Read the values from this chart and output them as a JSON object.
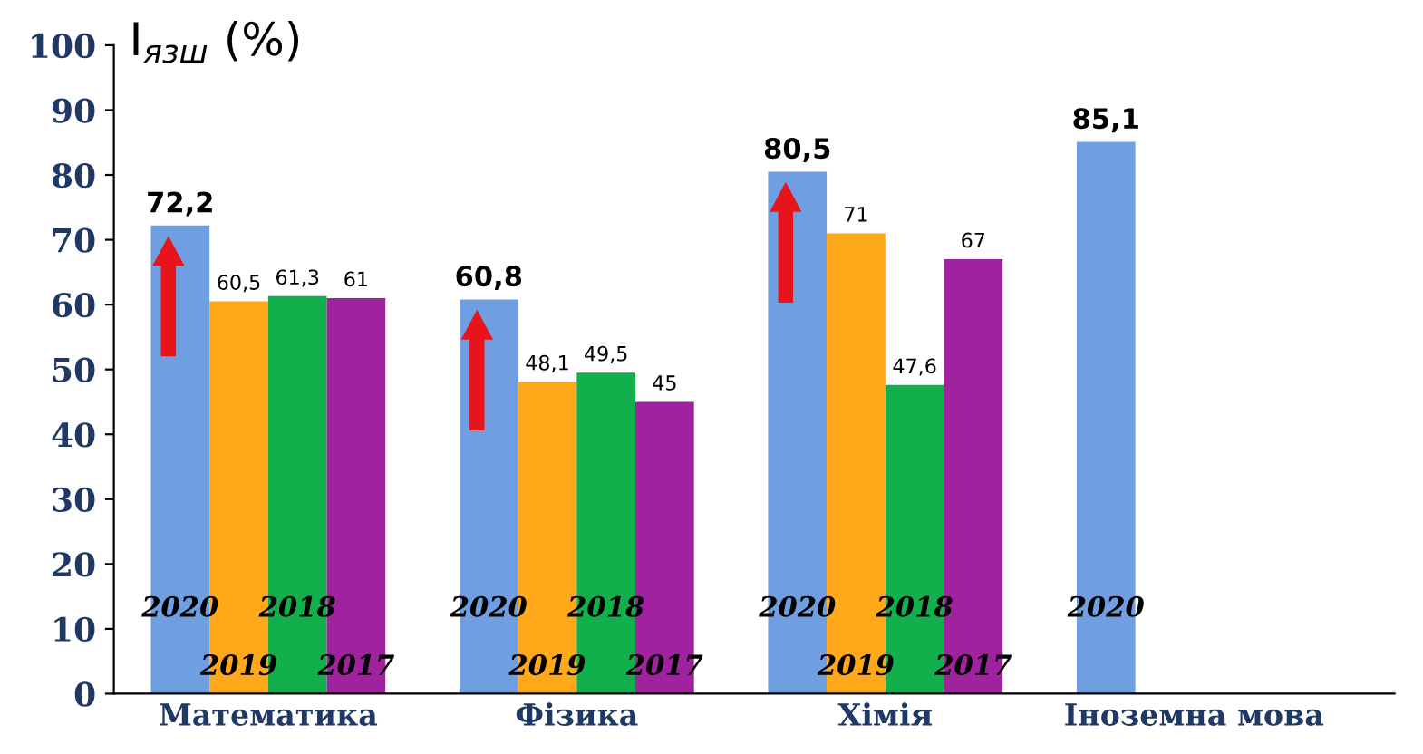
{
  "chart_data": {
    "type": "bar",
    "ylabel": "I$_{язш}$ (%)",
    "categories": [
      "Математика",
      "Фізика",
      "Хімія",
      "Іноземна мова"
    ],
    "series": [
      {
        "name": "2020",
        "color": "#6f9fe0",
        "values": [
          72.2,
          60.8,
          80.5,
          85.1
        ],
        "value_labels": [
          "72,2",
          "60,8",
          "80,5",
          "85,1"
        ]
      },
      {
        "name": "2019",
        "color": "#ffa81a",
        "values": [
          60.5,
          48.1,
          71,
          null
        ],
        "value_labels": [
          "60,5",
          "48,1",
          "71",
          null
        ]
      },
      {
        "name": "2018",
        "color": "#12b04c",
        "values": [
          61.3,
          49.5,
          47.6,
          null
        ],
        "value_labels": [
          "61,3",
          "49,5",
          "47,6",
          null
        ]
      },
      {
        "name": "2017",
        "color": "#a0229f",
        "values": [
          61,
          45,
          67,
          null
        ],
        "value_labels": [
          "61",
          "45",
          "67",
          null
        ]
      }
    ],
    "ylim": [
      0,
      100
    ],
    "yticks": [
      0,
      10,
      20,
      30,
      40,
      50,
      60,
      70,
      80,
      90,
      100
    ],
    "grid": false,
    "legend": false
  }
}
